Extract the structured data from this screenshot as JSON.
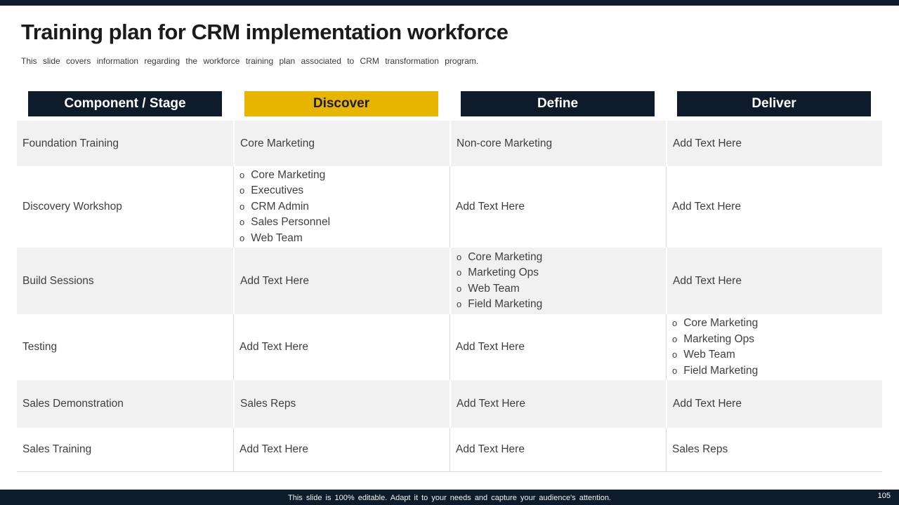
{
  "slide": {
    "title": "Training plan for CRM implementation workforce",
    "subtitle": "This slide covers information regarding the workforce training plan associated to CRM transformation program.",
    "footer": "This slide is 100% editable.  Adapt it to your needs and capture your audience's attention.",
    "page_number": "105"
  },
  "colors": {
    "navy": "#0d1b2b",
    "yellow": "#e7b400",
    "row_gray": "#f1f1f1",
    "row_white": "#ffffff",
    "body_text": "#3f3f3f"
  },
  "table": {
    "bullet": "o",
    "headers": [
      {
        "label": "Component / Stage",
        "style": "navy"
      },
      {
        "label": "Discover",
        "style": "yellow"
      },
      {
        "label": "Define",
        "style": "navy"
      },
      {
        "label": "Deliver",
        "style": "navy"
      }
    ],
    "rows": [
      {
        "cells": [
          {
            "text": "Foundation Training"
          },
          {
            "text": "Core Marketing"
          },
          {
            "text": "Non-core Marketing"
          },
          {
            "text": "Add Text Here"
          }
        ]
      },
      {
        "cells": [
          {
            "text": "Discovery Workshop"
          },
          {
            "items": [
              "Core Marketing",
              "Executives",
              "CRM Admin",
              "Sales Personnel",
              "Web Team"
            ]
          },
          {
            "text": "Add Text Here"
          },
          {
            "text": "Add Text Here"
          }
        ]
      },
      {
        "cells": [
          {
            "text": "Build Sessions"
          },
          {
            "text": "Add Text Here"
          },
          {
            "items": [
              "Core Marketing",
              "Marketing Ops",
              "Web Team",
              "Field Marketing"
            ]
          },
          {
            "text": "Add Text Here"
          }
        ]
      },
      {
        "cells": [
          {
            "text": "Testing"
          },
          {
            "text": "Add Text Here"
          },
          {
            "text": "Add Text Here"
          },
          {
            "items": [
              "Core Marketing",
              "Marketing Ops",
              "Web Team",
              "Field Marketing"
            ]
          }
        ]
      },
      {
        "cells": [
          {
            "text": "Sales Demonstration"
          },
          {
            "text": "Sales Reps"
          },
          {
            "text": "Add Text Here"
          },
          {
            "text": "Add Text Here"
          }
        ]
      },
      {
        "cells": [
          {
            "text": "Sales Training"
          },
          {
            "text": "Add Text Here"
          },
          {
            "text": "Add Text Here"
          },
          {
            "text": "Sales Reps"
          }
        ]
      }
    ]
  }
}
